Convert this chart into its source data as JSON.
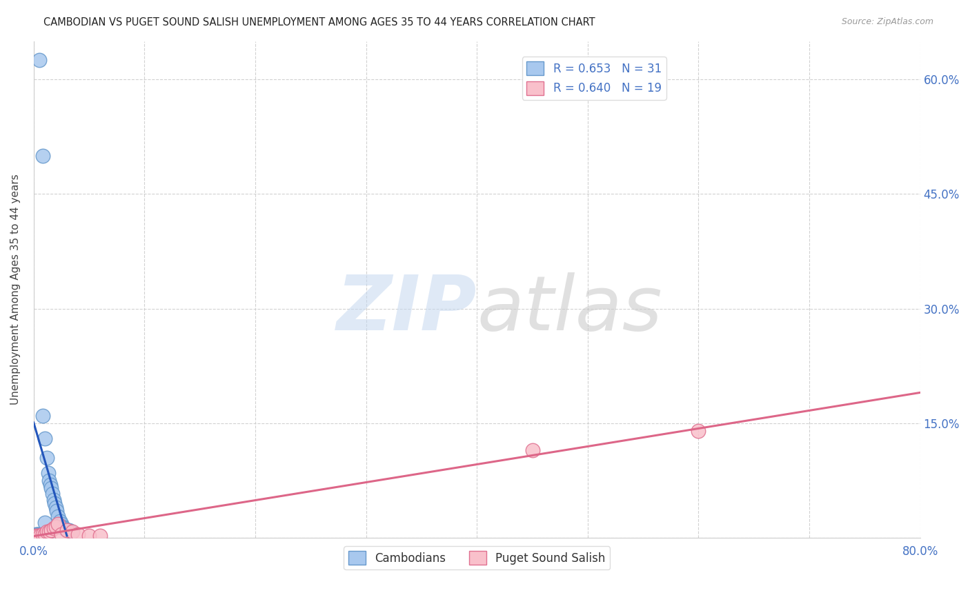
{
  "title": "CAMBODIAN VS PUGET SOUND SALISH UNEMPLOYMENT AMONG AGES 35 TO 44 YEARS CORRELATION CHART",
  "source": "Source: ZipAtlas.com",
  "ylabel": "Unemployment Among Ages 35 to 44 years",
  "xlim": [
    0,
    0.8
  ],
  "ylim": [
    0,
    0.65
  ],
  "xticks": [
    0.0,
    0.1,
    0.2,
    0.3,
    0.4,
    0.5,
    0.6,
    0.7,
    0.8
  ],
  "yticks": [
    0.0,
    0.15,
    0.3,
    0.45,
    0.6
  ],
  "cambodian_color": "#A8C8EE",
  "cambodian_edge_color": "#6699CC",
  "puget_color": "#F9C0CB",
  "puget_edge_color": "#E07090",
  "cambodian_line_color": "#2255BB",
  "puget_line_color": "#DD6688",
  "cambodian_R": 0.653,
  "cambodian_N": 31,
  "puget_R": 0.64,
  "puget_N": 19,
  "legend_label_cambodian": "Cambodians",
  "legend_label_puget": "Puget Sound Salish",
  "cambodian_scatter_x": [
    0.002,
    0.003,
    0.004,
    0.005,
    0.006,
    0.007,
    0.008,
    0.009,
    0.01,
    0.011,
    0.012,
    0.013,
    0.014,
    0.015,
    0.016,
    0.017,
    0.018,
    0.019,
    0.02,
    0.021,
    0.022,
    0.024,
    0.025,
    0.026,
    0.027,
    0.028,
    0.03,
    0.032,
    0.034,
    0.008,
    0.01
  ],
  "cambodian_scatter_y": [
    0.005,
    0.005,
    0.005,
    0.625,
    0.005,
    0.005,
    0.5,
    0.005,
    0.13,
    0.005,
    0.105,
    0.085,
    0.075,
    0.07,
    0.065,
    0.058,
    0.05,
    0.045,
    0.04,
    0.035,
    0.028,
    0.022,
    0.018,
    0.015,
    0.013,
    0.012,
    0.01,
    0.01,
    0.008,
    0.16,
    0.02
  ],
  "puget_scatter_x": [
    0.002,
    0.004,
    0.006,
    0.008,
    0.01,
    0.012,
    0.014,
    0.016,
    0.018,
    0.02,
    0.022,
    0.025,
    0.03,
    0.035,
    0.04,
    0.05,
    0.06,
    0.45,
    0.6
  ],
  "puget_scatter_y": [
    0.003,
    0.003,
    0.003,
    0.005,
    0.005,
    0.008,
    0.008,
    0.01,
    0.013,
    0.015,
    0.018,
    0.005,
    0.01,
    0.008,
    0.005,
    0.003,
    0.003,
    0.115,
    0.14
  ],
  "background_color": "#FFFFFF",
  "grid_color": "#CCCCCC",
  "watermark_zip_color": "#C5D8F0",
  "watermark_atlas_color": "#C8C8C8"
}
